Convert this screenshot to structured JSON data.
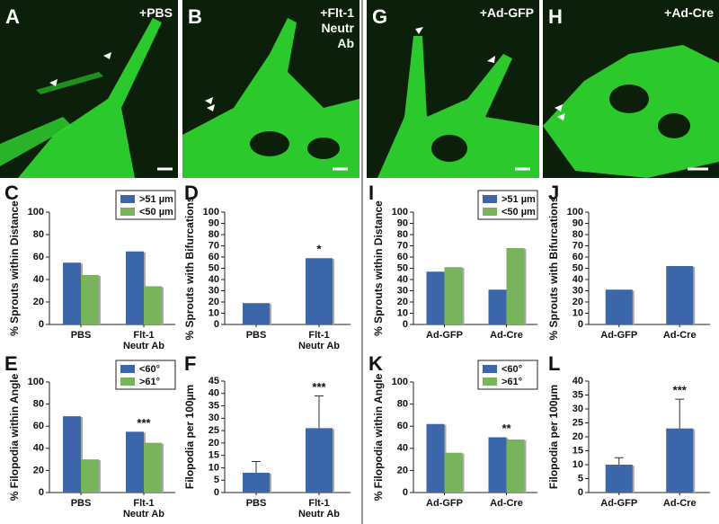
{
  "images": [
    {
      "letter": "A",
      "label": "+PBS"
    },
    {
      "letter": "B",
      "label": "+Flt-1\nNeutr\nAb"
    },
    {
      "letter": "G",
      "label": "+Ad-GFP"
    },
    {
      "letter": "H",
      "label": "+Ad-Cre"
    }
  ],
  "chart_data": [
    {
      "type": "bar",
      "label": "C",
      "ylabel": "% Sprouts within Distance",
      "categories": [
        "PBS",
        "Flt-1\nNeutr Ab"
      ],
      "series": [
        {
          "name": ">51 µm",
          "color": "#3b66a9",
          "values": [
            55,
            65
          ]
        },
        {
          "name": "<50 µm",
          "color": "#79b45c",
          "values": [
            44,
            34
          ]
        }
      ],
      "ylim": [
        0,
        100
      ],
      "yticks": [
        0,
        20,
        40,
        60,
        80,
        100
      ],
      "legend": "upper right"
    },
    {
      "type": "bar",
      "label": "D",
      "ylabel": "% Sprouts with Bifurcations",
      "categories": [
        "PBS",
        "Flt-1\nNeutr Ab"
      ],
      "values": [
        19,
        59
      ],
      "color": "#3b66a9",
      "ylim": [
        0,
        100
      ],
      "yticks": [
        0,
        10,
        20,
        30,
        40,
        50,
        60,
        70,
        80,
        90,
        100
      ],
      "annotations": [
        {
          "text": "*",
          "x": "Flt-1\nNeutr Ab"
        }
      ]
    },
    {
      "type": "bar",
      "label": "I",
      "ylabel": "% Sprouts within Distance",
      "categories": [
        "Ad-GFP",
        "Ad-Cre"
      ],
      "series": [
        {
          "name": ">51 µm",
          "color": "#3b66a9",
          "values": [
            47,
            31
          ]
        },
        {
          "name": "<50 µm",
          "color": "#79b45c",
          "values": [
            51,
            68
          ]
        }
      ],
      "ylim": [
        0,
        100
      ],
      "yticks": [
        0,
        10,
        20,
        30,
        40,
        50,
        60,
        70,
        80,
        90,
        100
      ],
      "legend": "upper right"
    },
    {
      "type": "bar",
      "label": "J",
      "ylabel": "% Sprouts with Bifurcations",
      "categories": [
        "Ad-GFP",
        "Ad-Cre"
      ],
      "values": [
        31,
        52
      ],
      "color": "#3b66a9",
      "ylim": [
        0,
        100
      ],
      "yticks": [
        0,
        10,
        20,
        30,
        40,
        50,
        60,
        70,
        80,
        90,
        100
      ]
    },
    {
      "type": "bar",
      "label": "E",
      "ylabel": "% Filopodia within Angle",
      "categories": [
        "PBS",
        "Flt-1\nNeutr Ab"
      ],
      "series": [
        {
          "name": "<60°",
          "color": "#3b66a9",
          "values": [
            69,
            55
          ]
        },
        {
          "name": ">61°",
          "color": "#79b45c",
          "values": [
            30,
            45
          ]
        }
      ],
      "ylim": [
        0,
        100
      ],
      "yticks": [
        0,
        20,
        40,
        60,
        80,
        100
      ],
      "legend": "upper right",
      "annotations": [
        {
          "text": "***",
          "x": "Flt-1\nNeutr Ab"
        }
      ]
    },
    {
      "type": "bar",
      "label": "F",
      "ylabel": "Filopodia per 100µm",
      "categories": [
        "PBS",
        "Flt-1\nNeutr Ab"
      ],
      "values": [
        8,
        26
      ],
      "errors": [
        4.5,
        13
      ],
      "color": "#3b66a9",
      "ylim": [
        0,
        45
      ],
      "yticks": [
        0,
        5,
        10,
        15,
        20,
        25,
        30,
        35,
        40,
        45
      ],
      "annotations": [
        {
          "text": "***",
          "x": "Flt-1\nNeutr Ab"
        }
      ]
    },
    {
      "type": "bar",
      "label": "K",
      "ylabel": "% Filopodia within Angle",
      "categories": [
        "Ad-GFP",
        "Ad-Cre"
      ],
      "series": [
        {
          "name": "<60°",
          "color": "#3b66a9",
          "values": [
            62,
            50
          ]
        },
        {
          "name": ">61°",
          "color": "#79b45c",
          "values": [
            36,
            48
          ]
        }
      ],
      "ylim": [
        0,
        100
      ],
      "yticks": [
        0,
        20,
        40,
        60,
        80,
        100
      ],
      "legend": "upper right",
      "annotations": [
        {
          "text": "**",
          "x": "Ad-Cre"
        }
      ]
    },
    {
      "type": "bar",
      "label": "L",
      "ylabel": "Filopodia per 100µm",
      "categories": [
        "Ad-GFP",
        "Ad-Cre"
      ],
      "values": [
        10,
        23
      ],
      "errors": [
        2.5,
        10.5
      ],
      "color": "#3b66a9",
      "ylim": [
        0,
        40
      ],
      "yticks": [
        0,
        5,
        10,
        15,
        20,
        25,
        30,
        35,
        40
      ],
      "annotations": [
        {
          "text": "***",
          "x": "Ad-Cre"
        }
      ]
    }
  ]
}
